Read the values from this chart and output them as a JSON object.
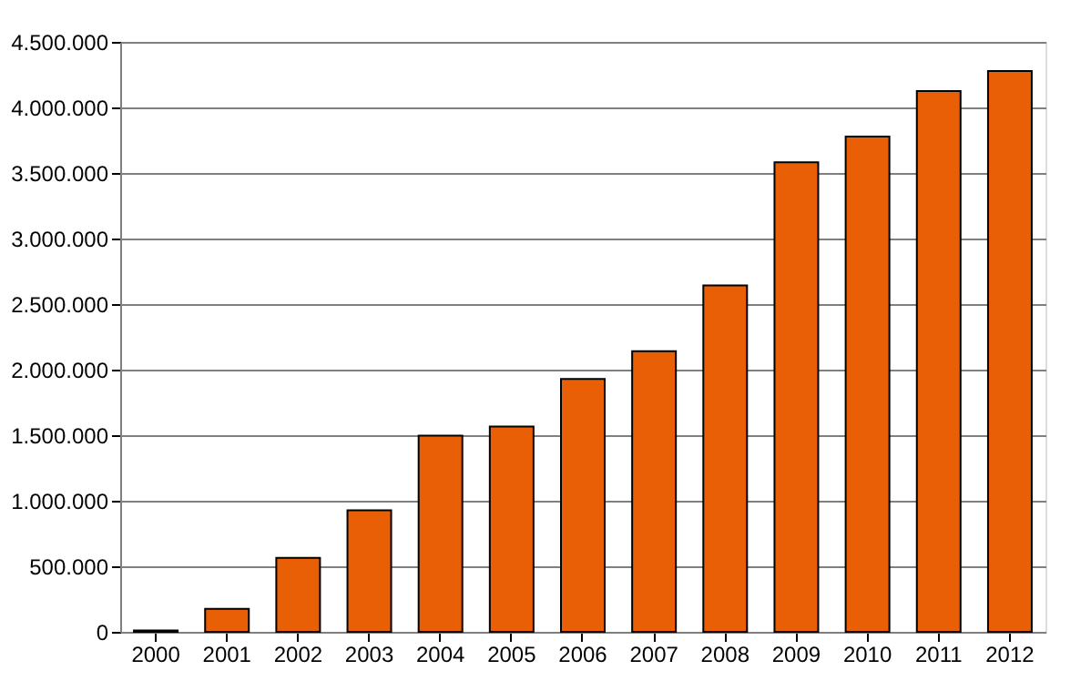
{
  "chart_data": {
    "type": "bar",
    "categories": [
      "2000",
      "2001",
      "2002",
      "2003",
      "2004",
      "2005",
      "2006",
      "2007",
      "2008",
      "2009",
      "2010",
      "2011",
      "2012"
    ],
    "values": [
      10000,
      176000,
      565000,
      927000,
      1497000,
      1566000,
      1928000,
      2141000,
      2642000,
      3582000,
      3777000,
      4125000,
      4278000
    ],
    "color": "#e85f05",
    "ylim": [
      0,
      4500000
    ],
    "yticks": [
      {
        "value": 0,
        "label": "0"
      },
      {
        "value": 500000,
        "label": "500.000"
      },
      {
        "value": 1000000,
        "label": "1.000.000"
      },
      {
        "value": 1500000,
        "label": "1.500.000"
      },
      {
        "value": 2000000,
        "label": "2.000.000"
      },
      {
        "value": 2500000,
        "label": "2.500.000"
      },
      {
        "value": 3000000,
        "label": "3.000.000"
      },
      {
        "value": 3500000,
        "label": "3.500.000"
      },
      {
        "value": 4000000,
        "label": "4.000.000"
      },
      {
        "value": 4500000,
        "label": "4.500.000"
      }
    ],
    "grid": "y"
  }
}
